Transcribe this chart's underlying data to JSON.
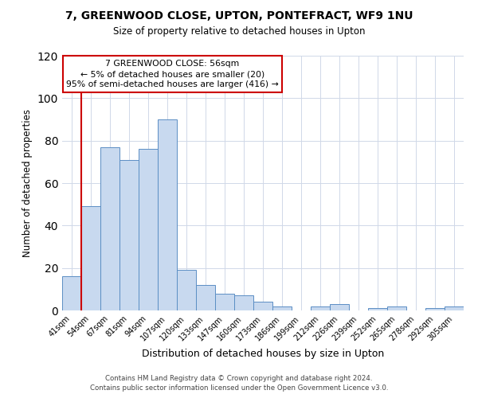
{
  "title": "7, GREENWOOD CLOSE, UPTON, PONTEFRACT, WF9 1NU",
  "subtitle": "Size of property relative to detached houses in Upton",
  "xlabel": "Distribution of detached houses by size in Upton",
  "ylabel": "Number of detached properties",
  "bar_labels": [
    "41sqm",
    "54sqm",
    "67sqm",
    "81sqm",
    "94sqm",
    "107sqm",
    "120sqm",
    "133sqm",
    "147sqm",
    "160sqm",
    "173sqm",
    "186sqm",
    "199sqm",
    "212sqm",
    "226sqm",
    "239sqm",
    "252sqm",
    "265sqm",
    "278sqm",
    "292sqm",
    "305sqm"
  ],
  "bar_values": [
    16,
    49,
    77,
    71,
    76,
    90,
    19,
    12,
    8,
    7,
    4,
    2,
    0,
    2,
    3,
    0,
    1,
    2,
    0,
    1,
    2
  ],
  "bar_color": "#c8d9ef",
  "bar_edge_color": "#5b8ec4",
  "ylim": [
    0,
    120
  ],
  "yticks": [
    0,
    20,
    40,
    60,
    80,
    100,
    120
  ],
  "vline_x_index": 1,
  "vline_color": "#cc0000",
  "annotation_title": "7 GREENWOOD CLOSE: 56sqm",
  "annotation_line1": "← 5% of detached houses are smaller (20)",
  "annotation_line2": "95% of semi-detached houses are larger (416) →",
  "annotation_box_color": "#ffffff",
  "annotation_box_edge": "#cc0000",
  "footer1": "Contains HM Land Registry data © Crown copyright and database right 2024.",
  "footer2": "Contains public sector information licensed under the Open Government Licence v3.0.",
  "background_color": "#ffffff",
  "grid_color": "#d0d8e8"
}
